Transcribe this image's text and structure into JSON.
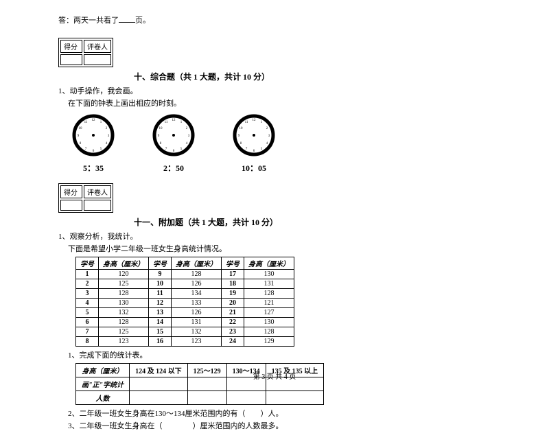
{
  "top_answer": {
    "prefix": "答：两天一共看了",
    "suffix": "页。"
  },
  "scorebox": {
    "left": "得分",
    "right": "评卷人"
  },
  "section10": {
    "title": "十、综合题（共 1 大题，共计 10 分）",
    "q1": "1、动手操作，我会画。",
    "q1_sub": "在下面的钟表上画出相应的时刻。",
    "clocks": [
      {
        "label": "5：35"
      },
      {
        "label": "2：50"
      },
      {
        "label": "10：05"
      }
    ]
  },
  "section11": {
    "title": "十一、附加题（共 1 大题，共计 10 分）",
    "q1": "1、观察分析，我统计。",
    "q1_sub": "下面是希望小学二年级一班女生身高统计情况。",
    "table_headers": {
      "id": "学号",
      "height": "身高（厘米）"
    },
    "table_data": [
      [
        "1",
        "120",
        "9",
        "128",
        "17",
        "130"
      ],
      [
        "2",
        "125",
        "10",
        "126",
        "18",
        "131"
      ],
      [
        "3",
        "128",
        "11",
        "134",
        "19",
        "128"
      ],
      [
        "4",
        "130",
        "12",
        "133",
        "20",
        "121"
      ],
      [
        "5",
        "132",
        "13",
        "126",
        "21",
        "127"
      ],
      [
        "6",
        "128",
        "14",
        "131",
        "22",
        "130"
      ],
      [
        "7",
        "125",
        "15",
        "132",
        "23",
        "128"
      ],
      [
        "8",
        "123",
        "16",
        "123",
        "24",
        "129"
      ]
    ],
    "sub1": "1、完成下面的统计表。",
    "stat_headers": {
      "row1": "身高（厘米）",
      "cols": [
        "124 及 124 以下",
        "125～129",
        "130～134",
        "135 及 135 以上"
      ],
      "row2": "画\"正\"字统计",
      "row3": "人数"
    },
    "sub2": "2、二年级一班女生身高在130～134厘米范围内的有（　　）人。",
    "sub3": "3、二年级一班女生身高在（　　　　）厘米范围内的人数最多。"
  },
  "footer": "第 3 页 共 4 页"
}
